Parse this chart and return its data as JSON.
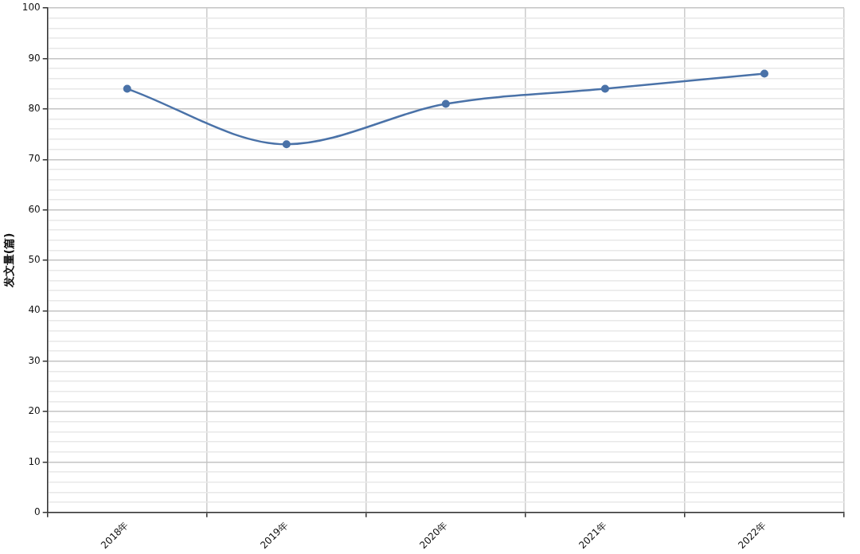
{
  "chart_data": {
    "type": "line",
    "ylabel": "发文量(篇)",
    "categories": [
      "2018年",
      "2019年",
      "2020年",
      "2021年",
      "2022年"
    ],
    "series": [
      {
        "color": "#4a72a8",
        "values": [
          84,
          73,
          81,
          84,
          87
        ]
      }
    ],
    "ylim": [
      0,
      100
    ],
    "yticks": [
      0,
      {
        "value": 2,
        "label": null
      },
      {
        "value": 4,
        "label": null
      },
      {
        "value": 6,
        "label": null
      },
      {
        "value": 8,
        "label": null
      },
      10,
      {
        "value": 12,
        "label": null
      },
      {
        "value": 14,
        "label": null
      },
      {
        "value": 16,
        "label": null
      },
      {
        "value": 18,
        "label": null
      },
      20,
      {
        "value": 22,
        "label": null
      },
      {
        "value": 24,
        "label": null
      },
      {
        "value": 26,
        "label": null
      },
      {
        "value": 28,
        "label": null
      },
      30,
      {
        "value": 32,
        "label": null
      },
      {
        "value": 34,
        "label": null
      },
      {
        "value": 36,
        "label": null
      },
      {
        "value": 38,
        "label": null
      },
      40,
      {
        "value": 42,
        "label": null
      },
      {
        "value": 44,
        "label": null
      },
      {
        "value": 46,
        "label": null
      },
      {
        "value": 48,
        "label": null
      },
      50,
      {
        "value": 52,
        "label": null
      },
      {
        "value": 54,
        "label": null
      },
      {
        "value": 56,
        "label": null
      },
      {
        "value": 58,
        "label": null
      },
      60,
      {
        "value": 62,
        "label": null
      },
      {
        "value": 64,
        "label": null
      },
      {
        "value": 66,
        "label": null
      },
      {
        "value": 68,
        "label": null
      },
      70,
      {
        "value": 72,
        "label": null
      },
      {
        "value": 74,
        "label": null
      },
      {
        "value": 76,
        "label": null
      },
      {
        "value": 78,
        "label": null
      },
      80,
      {
        "value": 82,
        "label": null
      },
      {
        "value": 84,
        "label": null
      },
      {
        "value": 86,
        "label": null
      },
      {
        "value": 88,
        "label": null
      },
      90,
      {
        "value": 92,
        "label": null
      },
      {
        "value": 94,
        "label": null
      },
      {
        "value": 96,
        "label": null
      },
      {
        "value": 98,
        "label": null
      },
      100
    ],
    "grid": true,
    "marker": "circle",
    "line_style": "solid",
    "legend": false
  }
}
